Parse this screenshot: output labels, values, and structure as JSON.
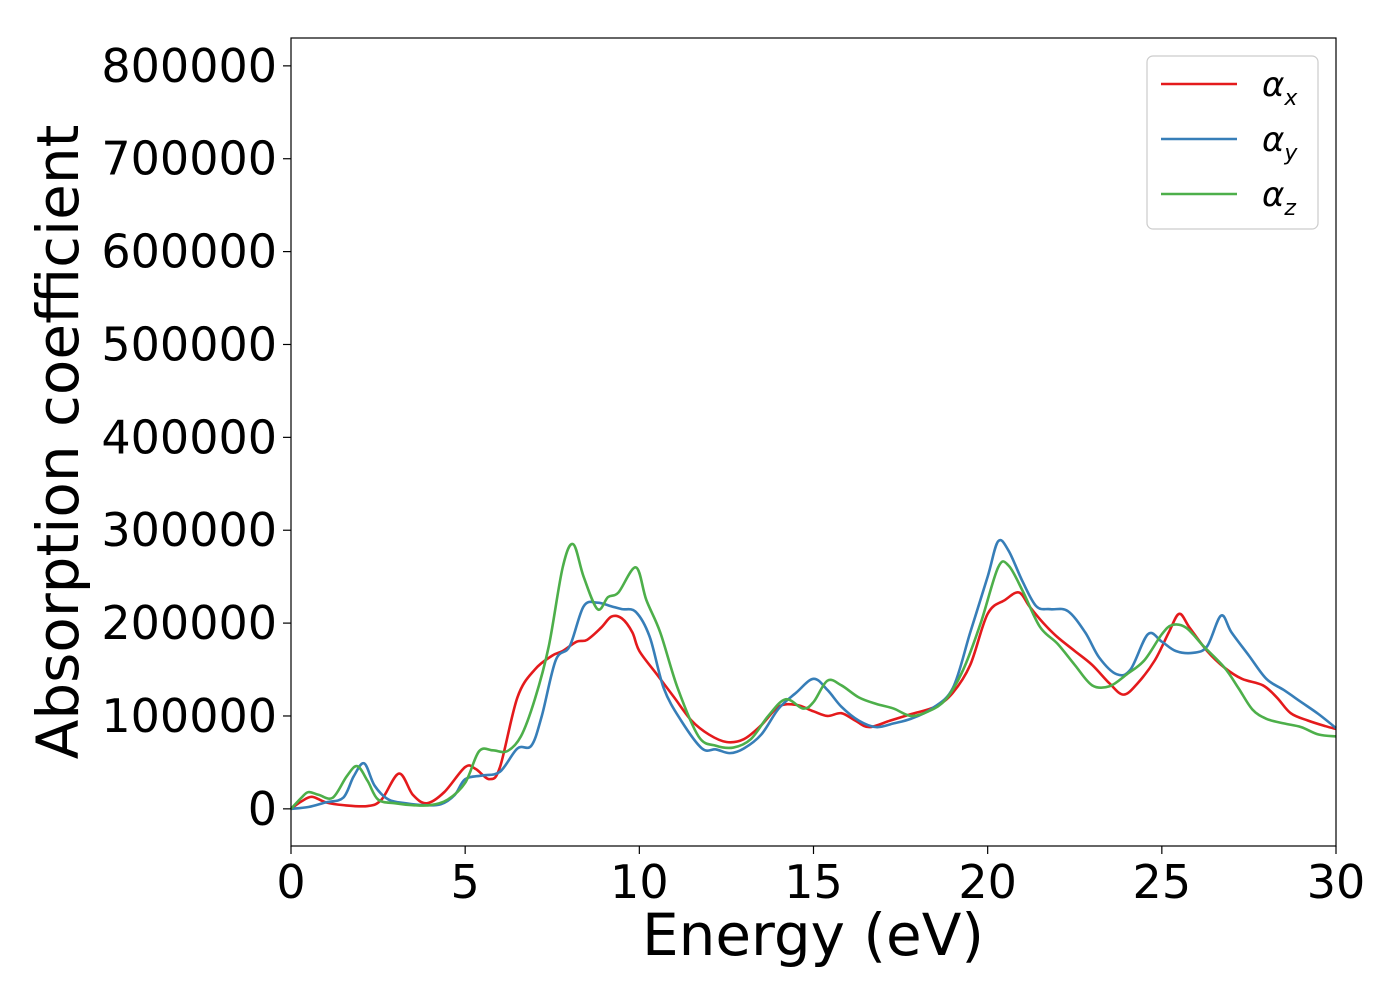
{
  "chart_data": {
    "type": "line",
    "xlabel": "Energy (eV)",
    "ylabel": "Absorption coefficient",
    "xlim": [
      0,
      30
    ],
    "ylim": [
      -40000,
      830000
    ],
    "xticks": [
      0,
      5,
      10,
      15,
      20,
      25,
      30
    ],
    "xtick_labels": [
      "0",
      "5",
      "10",
      "15",
      "20",
      "25",
      "30"
    ],
    "yticks": [
      0,
      100000,
      200000,
      300000,
      400000,
      500000,
      600000,
      700000,
      800000
    ],
    "ytick_labels": [
      "0",
      "100000",
      "200000",
      "300000",
      "400000",
      "500000",
      "600000",
      "700000",
      "800000"
    ],
    "grid": false,
    "legend_position": "top-right",
    "series": [
      {
        "name": "α",
        "name_sub": "x",
        "color": "#e41a1c",
        "points": [
          [
            0,
            0
          ],
          [
            0.3,
            8000
          ],
          [
            0.6,
            13000
          ],
          [
            1.0,
            7000
          ],
          [
            1.5,
            4000
          ],
          [
            2.2,
            3000
          ],
          [
            2.6,
            10000
          ],
          [
            3.1,
            38000
          ],
          [
            3.5,
            15000
          ],
          [
            3.9,
            6000
          ],
          [
            4.4,
            18000
          ],
          [
            5.0,
            45000
          ],
          [
            5.3,
            43000
          ],
          [
            5.7,
            32000
          ],
          [
            6.0,
            45000
          ],
          [
            6.5,
            120000
          ],
          [
            7.0,
            150000
          ],
          [
            7.5,
            165000
          ],
          [
            7.8,
            170000
          ],
          [
            8.2,
            180000
          ],
          [
            8.5,
            182000
          ],
          [
            8.9,
            195000
          ],
          [
            9.2,
            207000
          ],
          [
            9.5,
            205000
          ],
          [
            9.8,
            190000
          ],
          [
            10.0,
            170000
          ],
          [
            10.5,
            145000
          ],
          [
            11.0,
            120000
          ],
          [
            11.5,
            95000
          ],
          [
            12.0,
            80000
          ],
          [
            12.5,
            72000
          ],
          [
            13.0,
            75000
          ],
          [
            13.5,
            90000
          ],
          [
            14.0,
            110000
          ],
          [
            14.5,
            112000
          ],
          [
            15.0,
            105000
          ],
          [
            15.4,
            100000
          ],
          [
            15.8,
            103000
          ],
          [
            16.2,
            95000
          ],
          [
            16.6,
            88000
          ],
          [
            17.2,
            95000
          ],
          [
            17.8,
            102000
          ],
          [
            18.5,
            110000
          ],
          [
            19.0,
            125000
          ],
          [
            19.5,
            155000
          ],
          [
            20.0,
            210000
          ],
          [
            20.5,
            225000
          ],
          [
            20.9,
            233000
          ],
          [
            21.2,
            218000
          ],
          [
            21.6,
            200000
          ],
          [
            22.0,
            185000
          ],
          [
            22.5,
            170000
          ],
          [
            23.0,
            155000
          ],
          [
            23.5,
            135000
          ],
          [
            23.9,
            123000
          ],
          [
            24.3,
            135000
          ],
          [
            24.8,
            160000
          ],
          [
            25.2,
            190000
          ],
          [
            25.5,
            210000
          ],
          [
            25.8,
            195000
          ],
          [
            26.3,
            170000
          ],
          [
            26.8,
            152000
          ],
          [
            27.3,
            140000
          ],
          [
            27.9,
            133000
          ],
          [
            28.3,
            120000
          ],
          [
            28.7,
            103000
          ],
          [
            29.2,
            95000
          ],
          [
            29.7,
            89000
          ],
          [
            30.0,
            86000
          ]
        ]
      },
      {
        "name": "α",
        "name_sub": "y",
        "color": "#377eb8",
        "points": [
          [
            0,
            0
          ],
          [
            0.5,
            2000
          ],
          [
            1.0,
            7000
          ],
          [
            1.5,
            12000
          ],
          [
            1.8,
            35000
          ],
          [
            2.1,
            49000
          ],
          [
            2.4,
            25000
          ],
          [
            2.8,
            10000
          ],
          [
            3.3,
            6000
          ],
          [
            3.8,
            4000
          ],
          [
            4.3,
            5000
          ],
          [
            4.7,
            15000
          ],
          [
            5.0,
            32000
          ],
          [
            5.5,
            36000
          ],
          [
            6.0,
            40000
          ],
          [
            6.5,
            65000
          ],
          [
            6.9,
            68000
          ],
          [
            7.2,
            100000
          ],
          [
            7.6,
            160000
          ],
          [
            8.0,
            175000
          ],
          [
            8.4,
            218000
          ],
          [
            8.8,
            222000
          ],
          [
            9.2,
            218000
          ],
          [
            9.5,
            215000
          ],
          [
            9.9,
            212000
          ],
          [
            10.3,
            185000
          ],
          [
            10.7,
            130000
          ],
          [
            11.2,
            95000
          ],
          [
            11.8,
            65000
          ],
          [
            12.2,
            64000
          ],
          [
            12.6,
            60000
          ],
          [
            13.0,
            65000
          ],
          [
            13.5,
            80000
          ],
          [
            14.0,
            108000
          ],
          [
            14.5,
            125000
          ],
          [
            15.0,
            140000
          ],
          [
            15.4,
            128000
          ],
          [
            15.8,
            110000
          ],
          [
            16.3,
            95000
          ],
          [
            16.8,
            88000
          ],
          [
            17.3,
            92000
          ],
          [
            17.8,
            97000
          ],
          [
            18.4,
            108000
          ],
          [
            19.0,
            130000
          ],
          [
            19.5,
            190000
          ],
          [
            20.0,
            250000
          ],
          [
            20.3,
            288000
          ],
          [
            20.6,
            278000
          ],
          [
            21.0,
            245000
          ],
          [
            21.4,
            218000
          ],
          [
            21.8,
            215000
          ],
          [
            22.3,
            213000
          ],
          [
            22.8,
            190000
          ],
          [
            23.2,
            163000
          ],
          [
            23.7,
            145000
          ],
          [
            24.1,
            150000
          ],
          [
            24.6,
            188000
          ],
          [
            25.0,
            180000
          ],
          [
            25.4,
            170000
          ],
          [
            25.9,
            168000
          ],
          [
            26.3,
            175000
          ],
          [
            26.7,
            208000
          ],
          [
            27.0,
            190000
          ],
          [
            27.5,
            165000
          ],
          [
            28.0,
            140000
          ],
          [
            28.5,
            128000
          ],
          [
            29.0,
            115000
          ],
          [
            29.5,
            102000
          ],
          [
            30.0,
            87000
          ]
        ]
      },
      {
        "name": "α",
        "name_sub": "z",
        "color": "#4daf4a",
        "points": [
          [
            0,
            0
          ],
          [
            0.3,
            12000
          ],
          [
            0.5,
            18000
          ],
          [
            0.8,
            15000
          ],
          [
            1.2,
            12000
          ],
          [
            1.6,
            35000
          ],
          [
            1.9,
            46000
          ],
          [
            2.2,
            30000
          ],
          [
            2.5,
            10000
          ],
          [
            3.0,
            6000
          ],
          [
            3.5,
            4000
          ],
          [
            4.0,
            4000
          ],
          [
            4.5,
            10000
          ],
          [
            5.0,
            28000
          ],
          [
            5.4,
            62000
          ],
          [
            5.8,
            63000
          ],
          [
            6.2,
            62000
          ],
          [
            6.6,
            78000
          ],
          [
            7.0,
            118000
          ],
          [
            7.4,
            175000
          ],
          [
            7.8,
            260000
          ],
          [
            8.1,
            285000
          ],
          [
            8.4,
            250000
          ],
          [
            8.8,
            215000
          ],
          [
            9.1,
            228000
          ],
          [
            9.4,
            233000
          ],
          [
            9.9,
            260000
          ],
          [
            10.2,
            225000
          ],
          [
            10.6,
            190000
          ],
          [
            11.1,
            130000
          ],
          [
            11.7,
            78000
          ],
          [
            12.2,
            68000
          ],
          [
            12.7,
            66000
          ],
          [
            13.2,
            75000
          ],
          [
            13.7,
            100000
          ],
          [
            14.2,
            118000
          ],
          [
            14.7,
            108000
          ],
          [
            15.0,
            115000
          ],
          [
            15.4,
            138000
          ],
          [
            15.8,
            133000
          ],
          [
            16.3,
            120000
          ],
          [
            16.8,
            113000
          ],
          [
            17.3,
            108000
          ],
          [
            17.8,
            100000
          ],
          [
            18.3,
            105000
          ],
          [
            18.8,
            118000
          ],
          [
            19.3,
            150000
          ],
          [
            19.8,
            200000
          ],
          [
            20.3,
            260000
          ],
          [
            20.6,
            262000
          ],
          [
            21.0,
            235000
          ],
          [
            21.5,
            196000
          ],
          [
            22.0,
            178000
          ],
          [
            22.5,
            155000
          ],
          [
            23.0,
            133000
          ],
          [
            23.5,
            132000
          ],
          [
            24.0,
            145000
          ],
          [
            24.5,
            160000
          ],
          [
            25.0,
            188000
          ],
          [
            25.3,
            198000
          ],
          [
            25.7,
            195000
          ],
          [
            26.2,
            175000
          ],
          [
            26.8,
            152000
          ],
          [
            27.2,
            130000
          ],
          [
            27.6,
            107000
          ],
          [
            28.0,
            97000
          ],
          [
            28.5,
            92000
          ],
          [
            29.0,
            88000
          ],
          [
            29.5,
            80000
          ],
          [
            30.0,
            78000
          ]
        ]
      }
    ]
  }
}
